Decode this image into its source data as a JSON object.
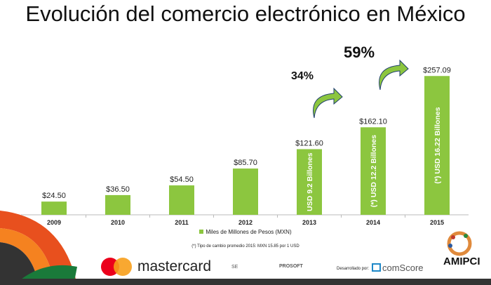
{
  "title": "Evolución del comercio electrónico en México",
  "chart_data": {
    "type": "bar",
    "title": "Evolución del comercio electrónico en México",
    "categories": [
      "2009",
      "2010",
      "2011",
      "2012",
      "2013",
      "2014",
      "2015"
    ],
    "values": [
      24.5,
      36.5,
      54.5,
      85.7,
      121.6,
      162.1,
      257.09
    ],
    "value_labels": [
      "$24.50",
      "$36.50",
      "$54.50",
      "$85.70",
      "$121.60",
      "$162.10",
      "$257.09"
    ],
    "bar_text": [
      "",
      "",
      "",
      "",
      "USD 9.2 Billones",
      "(*) USD 12.2 Billones",
      "(*) USD 16.22 Billones"
    ],
    "series": [
      {
        "name": "Miles de Millones de Pesos (MXN)",
        "values": [
          24.5,
          36.5,
          54.5,
          85.7,
          121.6,
          162.1,
          257.09
        ]
      }
    ],
    "growth_annotations": [
      {
        "label": "34%",
        "from": "2013",
        "to": "2014"
      },
      {
        "label": "59%",
        "from": "2014",
        "to": "2015"
      }
    ],
    "ylim": [
      0,
      260
    ],
    "grid": false,
    "legend": "bottom",
    "color": "#8cc63f"
  },
  "note": "(*) Tipo de cambio promedio 2015: MXN 15.85 por 1 USD",
  "logos": {
    "mastercard": "mastercard",
    "se": "SE",
    "prosoft": "PROSOFT",
    "developed_by": "Desarrollado por:",
    "comscore": "comScore",
    "amipci": "AMIPCI"
  }
}
